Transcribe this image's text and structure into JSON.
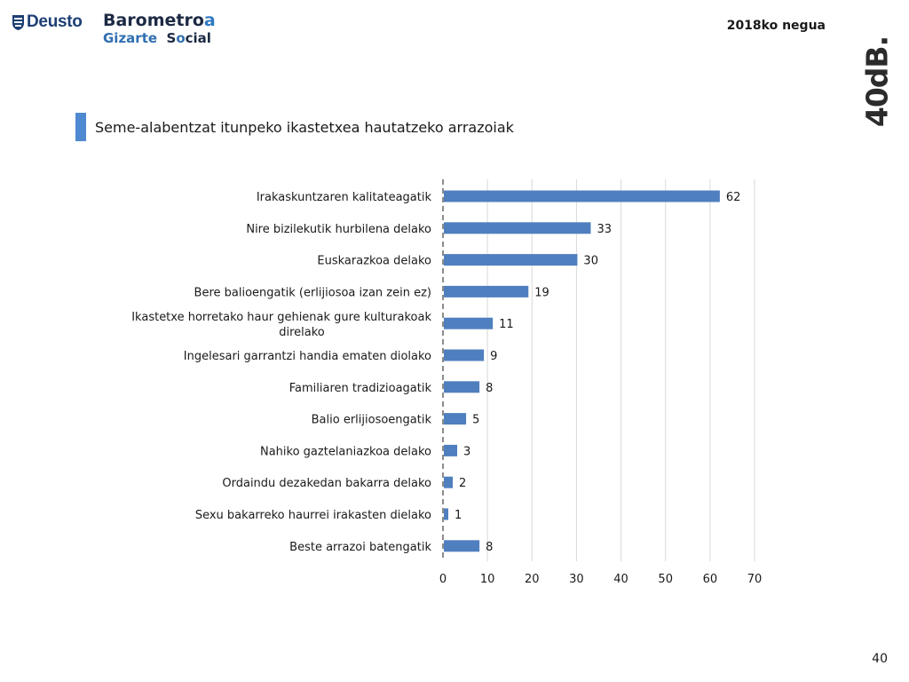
{
  "header": {
    "deusto_logo_text": "Deusto",
    "barometro_part1": "Barometro",
    "barometro_part2": "a",
    "gizarte": "Gizarte",
    "social_part1": "S",
    "social_part2": "o",
    "social_part3": "cial",
    "season": "2018ko negua",
    "brand": "40dB."
  },
  "title": "Seme-alabentzat itunpeko ikastetxea hautatzeko arrazoiak",
  "page_number": "40",
  "colors": {
    "bar": "#4f7fbf",
    "accent": "#4e89d1",
    "grid": "#d9d9d9",
    "axis": "#8c8c8c"
  },
  "chart_data": {
    "type": "bar",
    "orientation": "horizontal",
    "categories": [
      "Irakaskuntzaren kalitateagatik",
      "Nire bizilekutik hurbilena delako",
      "Euskarazkoa delako",
      "Bere balioengatik (erlijiosoa izan zein ez)",
      "Ikastetxe horretako haur gehienak gure kulturakoak direlako",
      "Ingelesari garrantzi handia ematen diolako",
      "Familiaren tradizioagatik",
      "Balio erlijiosoengatik",
      "Nahiko gaztelaniazkoa delako",
      "Ordaindu dezakedan bakarra delako",
      "Sexu bakarreko haurrei irakasten dielako",
      "Beste arrazoi batengatik"
    ],
    "values": [
      62,
      33,
      30,
      19,
      11,
      9,
      8,
      5,
      3,
      2,
      1,
      8
    ],
    "xlim": [
      0,
      70
    ],
    "xticks": [
      0,
      10,
      20,
      30,
      40,
      50,
      60,
      70
    ],
    "grid": true,
    "data_labels": true
  }
}
